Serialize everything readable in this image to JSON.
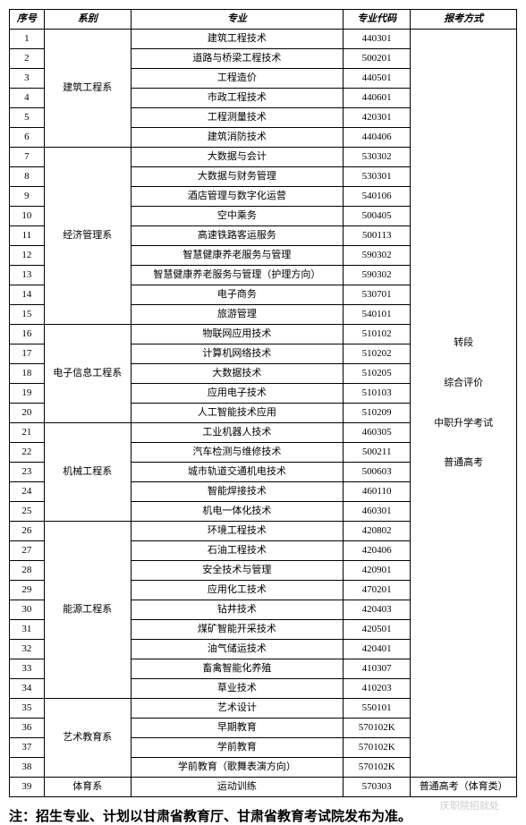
{
  "headers": {
    "seq": "序号",
    "dept": "系别",
    "major": "专业",
    "code": "专业代码",
    "method": "报考方式"
  },
  "departments": [
    {
      "name": "建筑工程系",
      "rows": [
        {
          "seq": 1,
          "major": "建筑工程技术",
          "code": "440301"
        },
        {
          "seq": 2,
          "major": "道路与桥梁工程技术",
          "code": "500201"
        },
        {
          "seq": 3,
          "major": "工程造价",
          "code": "440501"
        },
        {
          "seq": 4,
          "major": "市政工程技术",
          "code": "440601"
        },
        {
          "seq": 5,
          "major": "工程测量技术",
          "code": "420301"
        },
        {
          "seq": 6,
          "major": "建筑消防技术",
          "code": "440406"
        }
      ]
    },
    {
      "name": "经济管理系",
      "rows": [
        {
          "seq": 7,
          "major": "大数据与会计",
          "code": "530302"
        },
        {
          "seq": 8,
          "major": "大数据与财务管理",
          "code": "530301"
        },
        {
          "seq": 9,
          "major": "酒店管理与数字化运营",
          "code": "540106"
        },
        {
          "seq": 10,
          "major": "空中乘务",
          "code": "500405"
        },
        {
          "seq": 11,
          "major": "高速铁路客运服务",
          "code": "500113"
        },
        {
          "seq": 12,
          "major": "智慧健康养老服务与管理",
          "code": "590302"
        },
        {
          "seq": 13,
          "major": "智慧健康养老服务与管理（护理方向）",
          "code": "590302"
        },
        {
          "seq": 14,
          "major": "电子商务",
          "code": "530701"
        },
        {
          "seq": 15,
          "major": "旅游管理",
          "code": "540101"
        }
      ]
    },
    {
      "name": "电子信息工程系",
      "rows": [
        {
          "seq": 16,
          "major": "物联网应用技术",
          "code": "510102"
        },
        {
          "seq": 17,
          "major": "计算机网络技术",
          "code": "510202"
        },
        {
          "seq": 18,
          "major": "大数据技术",
          "code": "510205"
        },
        {
          "seq": 19,
          "major": "应用电子技术",
          "code": "510103"
        },
        {
          "seq": 20,
          "major": "人工智能技术应用",
          "code": "510209"
        }
      ]
    },
    {
      "name": "机械工程系",
      "rows": [
        {
          "seq": 21,
          "major": "工业机器人技术",
          "code": "460305"
        },
        {
          "seq": 22,
          "major": "汽车检测与维修技术",
          "code": "500211"
        },
        {
          "seq": 23,
          "major": "城市轨道交通机电技术",
          "code": "500603"
        },
        {
          "seq": 24,
          "major": "智能焊接技术",
          "code": "460110"
        },
        {
          "seq": 25,
          "major": "机电一体化技术",
          "code": "460301"
        }
      ]
    },
    {
      "name": "能源工程系",
      "rows": [
        {
          "seq": 26,
          "major": "环境工程技术",
          "code": "420802"
        },
        {
          "seq": 27,
          "major": "石油工程技术",
          "code": "420406"
        },
        {
          "seq": 28,
          "major": "安全技术与管理",
          "code": "420901"
        },
        {
          "seq": 29,
          "major": "应用化工技术",
          "code": "470201"
        },
        {
          "seq": 30,
          "major": "钻井技术",
          "code": "420403"
        },
        {
          "seq": 31,
          "major": "煤矿智能开采技术",
          "code": "420501"
        },
        {
          "seq": 32,
          "major": "油气储运技术",
          "code": "420401"
        },
        {
          "seq": 33,
          "major": "畜禽智能化养殖",
          "code": "410307"
        },
        {
          "seq": 34,
          "major": "草业技术",
          "code": "410203"
        }
      ]
    },
    {
      "name": "艺术教育系",
      "rows": [
        {
          "seq": 35,
          "major": "艺术设计",
          "code": "550101"
        },
        {
          "seq": 36,
          "major": "早期教育",
          "code": "570102K"
        },
        {
          "seq": 37,
          "major": "学前教育",
          "code": "570102K"
        },
        {
          "seq": 38,
          "major": "学前教育（歌舞表演方向）",
          "code": "570102K"
        }
      ]
    }
  ],
  "method_lines": [
    "转段",
    "综合评价",
    "中职升学考试",
    "普通高考"
  ],
  "last_row": {
    "seq": 39,
    "dept": "体育系",
    "major": "运动训练",
    "code": "570303",
    "method": "普通高考（体育类）"
  },
  "footer": "注：招生专业、计划以甘肃省教育厅、甘肃省教育考试院发布为准。",
  "watermark": "庆职院招就处"
}
